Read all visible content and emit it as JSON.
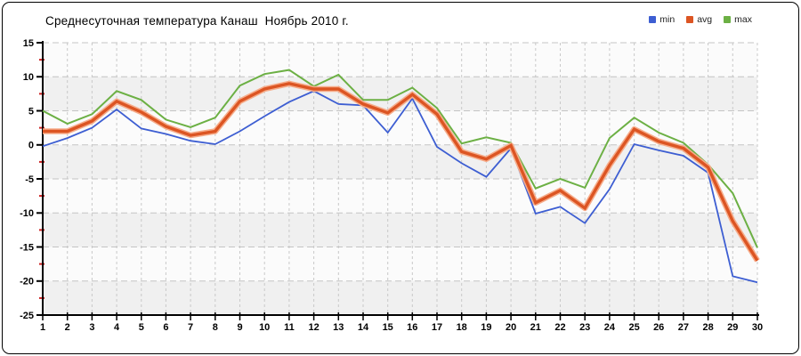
{
  "chart_data": {
    "type": "line",
    "title": "Среднесуточная температура Канаш  Ноябрь 2010 г.",
    "xlabel": "",
    "ylabel": "",
    "x": [
      1,
      2,
      3,
      4,
      5,
      6,
      7,
      8,
      9,
      10,
      11,
      12,
      13,
      14,
      15,
      16,
      17,
      18,
      19,
      20,
      21,
      22,
      23,
      24,
      25,
      26,
      27,
      28,
      29,
      30
    ],
    "x_ticks": [
      "1",
      "2",
      "3",
      "4",
      "5",
      "6",
      "7",
      "8",
      "9",
      "10",
      "11",
      "12",
      "13",
      "14",
      "15",
      "16",
      "17",
      "18",
      "19",
      "20",
      "21",
      "22",
      "23",
      "24",
      "25",
      "26",
      "27",
      "28",
      "29",
      "30"
    ],
    "y_ticks": [
      "15",
      "10",
      "5",
      "0",
      "-5",
      "-10",
      "-15",
      "-20",
      "-25"
    ],
    "ylim": [
      -25,
      15
    ],
    "xlim": [
      1,
      30
    ],
    "grid": true,
    "legend_position": "top-right",
    "series": [
      {
        "name": "min",
        "color": "#3d5ed2",
        "values": [
          -0.2,
          1.0,
          2.5,
          5.2,
          2.4,
          1.6,
          0.6,
          0.1,
          2.0,
          4.2,
          6.3,
          7.9,
          6.0,
          5.8,
          1.8,
          6.8,
          -0.3,
          -2.7,
          -4.7,
          -0.5,
          -10.1,
          -9.1,
          -11.5,
          -6.5,
          0.1,
          -0.8,
          -1.6,
          -4.1,
          -19.3,
          -20.2
        ]
      },
      {
        "name": "avg",
        "color": "#dc5523",
        "halo_color": "#f6ac8a",
        "values": [
          2.0,
          2.0,
          3.5,
          6.4,
          4.8,
          2.7,
          1.4,
          2.0,
          6.4,
          8.2,
          9.0,
          8.2,
          8.2,
          6.0,
          4.7,
          7.4,
          4.5,
          -1.0,
          -2.1,
          -0.1,
          -8.5,
          -6.7,
          -9.3,
          -3.0,
          2.3,
          0.5,
          -0.5,
          -3.3,
          -11.2,
          -17.0
        ]
      },
      {
        "name": "max",
        "color": "#6cb044",
        "values": [
          5.0,
          3.1,
          4.5,
          7.9,
          6.6,
          3.7,
          2.6,
          4.0,
          8.7,
          10.4,
          11.0,
          8.6,
          10.3,
          6.6,
          6.6,
          8.4,
          5.4,
          0.2,
          1.1,
          0.3,
          -6.4,
          -5.0,
          -6.3,
          1.0,
          4.0,
          1.8,
          0.3,
          -2.9,
          -7.1,
          -15.1
        ]
      }
    ],
    "style": {
      "band_colors": [
        "#fbfbfb",
        "#f0f0f0"
      ],
      "h_grid_color": "#c4c4c4",
      "v_grid_color": "#c9c9c9",
      "axis_color": "#000000",
      "minor_tick_color": "#cc2222",
      "tick_label_color": "#000000"
    }
  }
}
